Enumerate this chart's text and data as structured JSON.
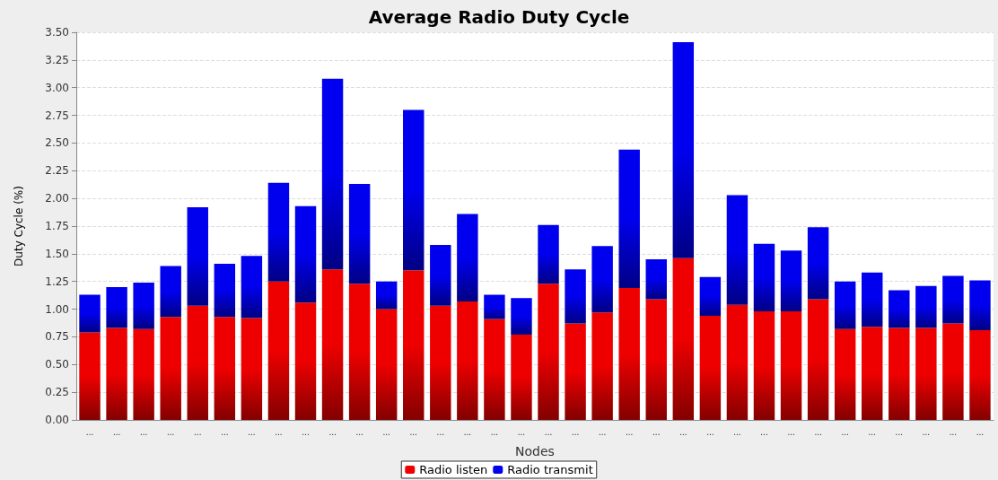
{
  "chart_data": {
    "type": "bar",
    "title": "Average Radio Duty Cycle",
    "xlabel": "Nodes",
    "ylabel": "Duty Cycle (%)",
    "categories": [
      "...",
      "...",
      "...",
      "...",
      "...",
      "...",
      "...",
      "...",
      "...",
      "...",
      "...",
      "...",
      "...",
      "...",
      "...",
      "...",
      "...",
      "...",
      "...",
      "...",
      "...",
      "...",
      "...",
      "...",
      "...",
      "...",
      "...",
      "...",
      "...",
      "...",
      "...",
      "...",
      "...",
      "..."
    ],
    "stacked": true,
    "series": [
      {
        "name": "Radio listen",
        "color": "#ee0000",
        "values": [
          0.79,
          0.83,
          0.82,
          0.93,
          1.03,
          0.93,
          0.92,
          1.25,
          1.06,
          1.36,
          1.23,
          1.0,
          1.35,
          1.03,
          1.07,
          0.91,
          0.77,
          1.23,
          0.87,
          0.97,
          1.19,
          1.09,
          1.46,
          0.94,
          1.04,
          0.98,
          0.98,
          1.09,
          0.82,
          0.84,
          0.83,
          0.83,
          0.87,
          0.81
        ]
      },
      {
        "name": "Radio transmit",
        "color": "#0000ee",
        "values": [
          0.34,
          0.37,
          0.42,
          0.46,
          0.89,
          0.48,
          0.56,
          0.89,
          0.87,
          1.72,
          0.9,
          0.25,
          1.45,
          0.55,
          0.79,
          0.22,
          0.33,
          0.53,
          0.49,
          0.6,
          1.25,
          0.36,
          1.95,
          0.35,
          0.99,
          0.61,
          0.55,
          0.65,
          0.43,
          0.49,
          0.34,
          0.38,
          0.43,
          0.45
        ]
      }
    ],
    "ylim": [
      0,
      3.5
    ],
    "yticks": [
      {
        "value": 0,
        "label": "0.00"
      },
      0.25,
      {
        "value": 0.5,
        "label": "0.50"
      },
      0.75,
      {
        "value": 1,
        "label": "1.00"
      },
      1.25,
      {
        "value": 1.5,
        "label": "1.50"
      },
      1.75,
      {
        "value": 2,
        "label": "2.00"
      },
      2.25,
      {
        "value": 2.5,
        "label": "2.50"
      },
      2.75,
      {
        "value": 3,
        "label": "3.00"
      },
      3.25,
      {
        "value": 3.5,
        "label": "3.50"
      }
    ],
    "grid": "y",
    "legend": "bottom"
  }
}
